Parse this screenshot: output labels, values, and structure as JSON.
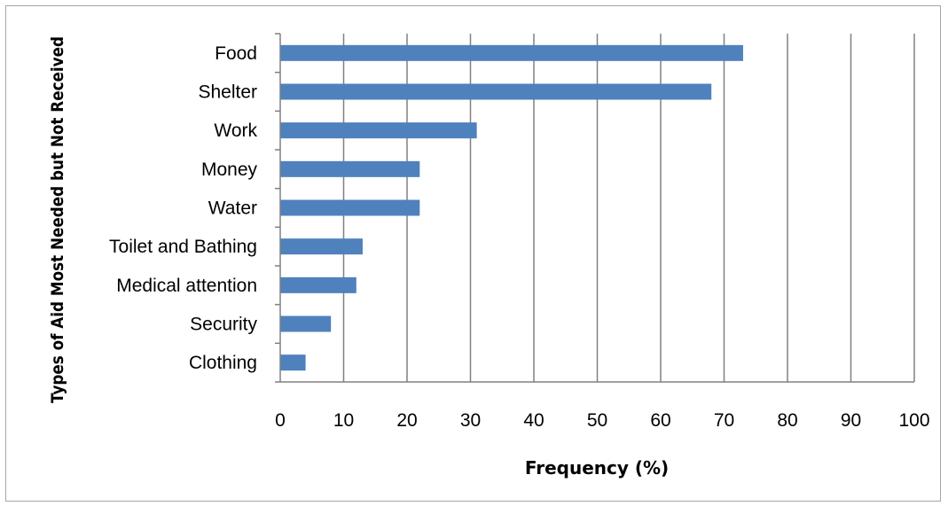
{
  "chart_data": {
    "type": "bar",
    "orientation": "horizontal",
    "categories": [
      "Food",
      "Shelter",
      "Work",
      "Money",
      "Water",
      "Toilet and Bathing",
      "Medical attention",
      "Security",
      "Clothing"
    ],
    "values": [
      73,
      68,
      31,
      22,
      22,
      13,
      12,
      8,
      4
    ],
    "xlabel": "Frequency (%)",
    "ylabel": "Types of Aid Most Needed but Not Received",
    "xlim": [
      0,
      100
    ],
    "xticks": [
      0,
      10,
      20,
      30,
      40,
      50,
      60,
      70,
      80,
      90,
      100
    ],
    "grid": "vertical",
    "bar_color": "#4f81bd",
    "legend": "none"
  }
}
